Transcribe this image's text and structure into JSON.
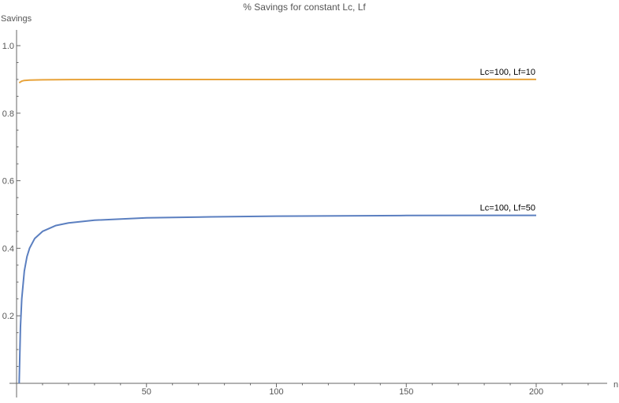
{
  "chart_data": {
    "type": "line",
    "title": "% Savings for constant Lc, Lf",
    "xlabel": "n",
    "ylabel": "Savings",
    "xlim": [
      0,
      230
    ],
    "ylim": [
      0,
      1.05
    ],
    "x_ticks": [
      50,
      100,
      150,
      200
    ],
    "y_ticks": [
      0.2,
      0.4,
      0.6,
      0.8,
      1.0
    ],
    "y_tick_labels": [
      "0.2",
      "0.4",
      "0.6",
      "0.8",
      "1.0"
    ],
    "grid": false,
    "series": [
      {
        "name": "Lc=100, Lf=10",
        "color": "#E8A33A",
        "x": [
          1,
          2,
          3,
          5,
          10,
          20,
          50,
          100,
          150,
          200
        ],
        "y": [
          0.89,
          0.895,
          0.897,
          0.898,
          0.899,
          0.8995,
          0.8998,
          0.8999,
          0.9,
          0.9
        ]
      },
      {
        "name": "Lc=100, Lf=50",
        "color": "#5B7FC0",
        "x": [
          1,
          1.5,
          2,
          3,
          4,
          5,
          7,
          10,
          15,
          20,
          30,
          50,
          75,
          100,
          150,
          200
        ],
        "y": [
          0.0,
          0.167,
          0.25,
          0.333,
          0.375,
          0.4,
          0.429,
          0.45,
          0.467,
          0.475,
          0.483,
          0.49,
          0.493,
          0.495,
          0.497,
          0.4975
        ]
      }
    ]
  }
}
